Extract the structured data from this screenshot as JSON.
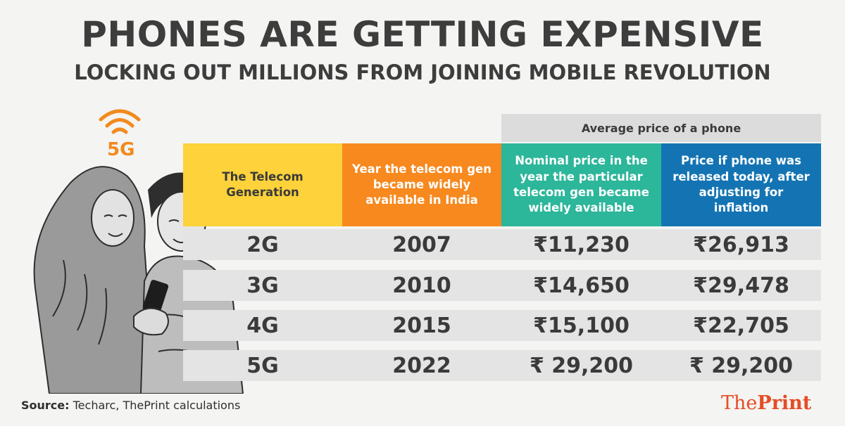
{
  "header": {
    "title": "PHONES ARE GETTING EXPENSIVE",
    "subtitle": "LOCKING OUT MILLIONS FROM JOINING MOBILE REVOLUTION"
  },
  "illustration": {
    "badge": "5G",
    "accent_color": "#f28a1e"
  },
  "table": {
    "group_header": "Average price of a phone",
    "columns": [
      {
        "label": "The Telecom Generation",
        "color": "#fdd23a"
      },
      {
        "label": "Year the telecom gen became widely available in India",
        "color": "#f7891f"
      },
      {
        "label": "Nominal price in the year the particular telecom gen became widely available",
        "color": "#2cb69a"
      },
      {
        "label": "Price if phone was released today, after adjusting for inflation",
        "color": "#1474b3"
      }
    ],
    "rows": [
      {
        "generation": "2G",
        "year": "2007",
        "nominal": "₹11,230",
        "adjusted": "₹26,913"
      },
      {
        "generation": "3G",
        "year": "2010",
        "nominal": "₹14,650",
        "adjusted": "₹29,478"
      },
      {
        "generation": "4G",
        "year": "2015",
        "nominal": "₹15,100",
        "adjusted": "₹22,705"
      },
      {
        "generation": "5G",
        "year": "2022",
        "nominal": "₹ 29,200",
        "adjusted": "₹ 29,200"
      }
    ]
  },
  "footer": {
    "source_label": "Source:",
    "source_text": " Techarc, ThePrint calculations",
    "brand_regular": "The",
    "brand_bold": "Print"
  }
}
